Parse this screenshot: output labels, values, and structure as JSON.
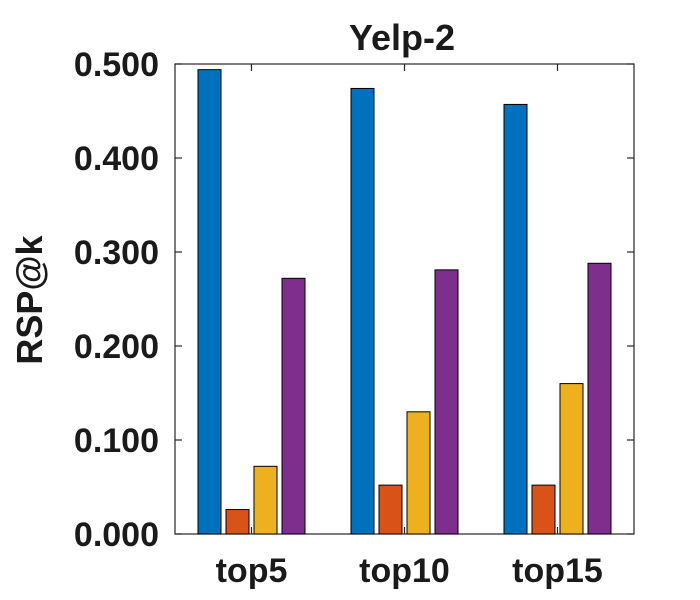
{
  "chart_data": {
    "type": "bar",
    "title": "Yelp-2",
    "xlabel": "",
    "ylabel": "RSP@k",
    "ylim": [
      0,
      0.5
    ],
    "yticks": [
      "0.000",
      "0.100",
      "0.200",
      "0.300",
      "0.400",
      "0.500"
    ],
    "categories": [
      "top5",
      "top10",
      "top15"
    ],
    "series": [
      {
        "color": "#0072BD",
        "values": [
          0.494,
          0.474,
          0.457
        ]
      },
      {
        "color": "#D95319",
        "values": [
          0.026,
          0.052,
          0.052
        ]
      },
      {
        "color": "#EDB120",
        "values": [
          0.072,
          0.13,
          0.16
        ]
      },
      {
        "color": "#7E2F8E",
        "values": [
          0.272,
          0.281,
          0.288
        ]
      }
    ],
    "grid": false,
    "legend": "none"
  }
}
